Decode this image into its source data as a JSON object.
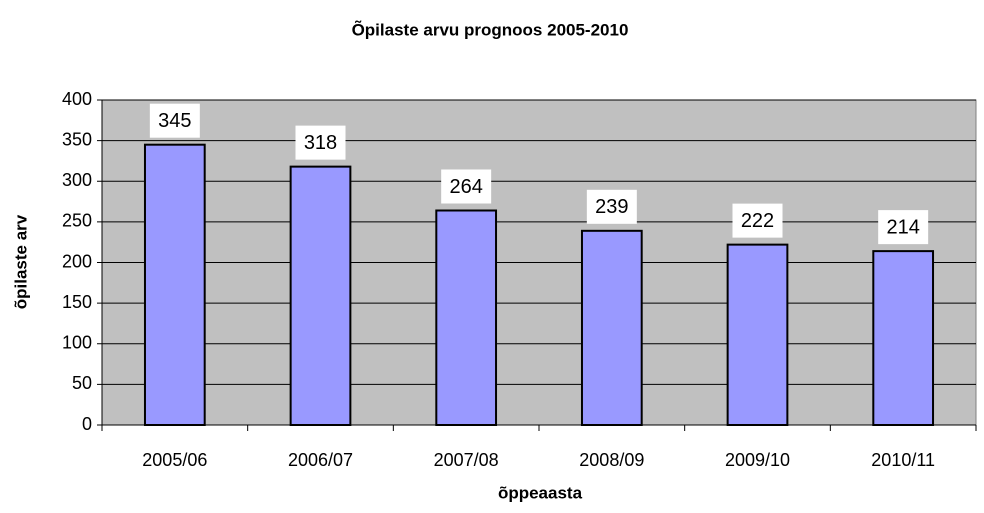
{
  "chart_data": {
    "type": "bar",
    "title": "Õpilaste arvu prognoos 2005-2010",
    "x_label": "õppeaasta",
    "y_label": "õpilaste arv",
    "categories": [
      "2005/06",
      "2006/07",
      "2007/08",
      "2008/09",
      "2009/10",
      "2010/11"
    ],
    "values": [
      345,
      318,
      264,
      239,
      222,
      214
    ],
    "color": "#9999ff",
    "ylim": [
      0,
      400
    ],
    "yticks": [
      0,
      50,
      100,
      150,
      200,
      250,
      300,
      350,
      400
    ],
    "grid": true
  }
}
